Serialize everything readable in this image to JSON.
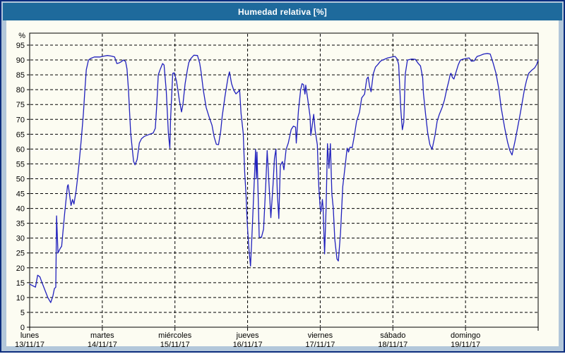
{
  "window": {
    "title": "Humedad relativa [%]"
  },
  "colors": {
    "title_bar": "#1e6a9c",
    "title_text": "#ffffff",
    "window_border": "#0c2d7e",
    "window_margin": "#b2c7da",
    "panel_background": "#fcfcf2",
    "series_line": "#2121bd",
    "grid_line": "#000000",
    "axis_text": "#000000"
  },
  "chart_data": {
    "type": "line",
    "title": "Humedad relativa [%]",
    "ylabel": "%",
    "ylim": [
      0,
      99
    ],
    "y_ticks": [
      0,
      5,
      10,
      15,
      20,
      25,
      30,
      35,
      40,
      45,
      50,
      55,
      60,
      65,
      70,
      75,
      80,
      85,
      90,
      95
    ],
    "grid": "dashed",
    "legend": "none",
    "x_axis_days": [
      {
        "name": "lunes",
        "date": "13/11/17"
      },
      {
        "name": "martes",
        "date": "14/11/17"
      },
      {
        "name": "miércoles",
        "date": "15/11/17"
      },
      {
        "name": "jueves",
        "date": "16/11/17"
      },
      {
        "name": "viernes",
        "date": "17/11/17"
      },
      {
        "name": "sábado",
        "date": "18/11/17"
      },
      {
        "name": "domingo",
        "date": "19/11/17"
      }
    ],
    "series": [
      {
        "name": "Humedad relativa [%]",
        "x_unit": "days_from_start",
        "points": [
          [
            0,
            14.5
          ],
          [
            0.04,
            14
          ],
          [
            0.08,
            13.5
          ],
          [
            0.11,
            17.5
          ],
          [
            0.14,
            17
          ],
          [
            0.17,
            15
          ],
          [
            0.21,
            12.5
          ],
          [
            0.25,
            10
          ],
          [
            0.29,
            8.3
          ],
          [
            0.32,
            10.5
          ],
          [
            0.34,
            13
          ],
          [
            0.36,
            13.5
          ],
          [
            0.37,
            37.5
          ],
          [
            0.39,
            25
          ],
          [
            0.42,
            26.5
          ],
          [
            0.44,
            27.3
          ],
          [
            0.48,
            38
          ],
          [
            0.52,
            47.5
          ],
          [
            0.53,
            48
          ],
          [
            0.57,
            41
          ],
          [
            0.59,
            43
          ],
          [
            0.61,
            41.5
          ],
          [
            0.64,
            46
          ],
          [
            0.66,
            50.4
          ],
          [
            0.68,
            55
          ],
          [
            0.71,
            63
          ],
          [
            0.74,
            72
          ],
          [
            0.76,
            80
          ],
          [
            0.78,
            86.7
          ],
          [
            0.81,
            90
          ],
          [
            0.84,
            90.5
          ],
          [
            0.89,
            91
          ],
          [
            0.97,
            91
          ],
          [
            1.02,
            91.3
          ],
          [
            1.07,
            91.5
          ],
          [
            1.13,
            91.3
          ],
          [
            1.17,
            91
          ],
          [
            1.2,
            88.8
          ],
          [
            1.23,
            89
          ],
          [
            1.26,
            89.4
          ],
          [
            1.29,
            90
          ],
          [
            1.32,
            89.5
          ],
          [
            1.34,
            87
          ],
          [
            1.36,
            80
          ],
          [
            1.39,
            65.4
          ],
          [
            1.43,
            55.9
          ],
          [
            1.45,
            54.7
          ],
          [
            1.48,
            56.5
          ],
          [
            1.51,
            62
          ],
          [
            1.54,
            63.5
          ],
          [
            1.58,
            64.3
          ],
          [
            1.63,
            64.8
          ],
          [
            1.7,
            65.4
          ],
          [
            1.73,
            67
          ],
          [
            1.75,
            75
          ],
          [
            1.77,
            85
          ],
          [
            1.8,
            87
          ],
          [
            1.83,
            88.8
          ],
          [
            1.85,
            88.3
          ],
          [
            1.88,
            79.6
          ],
          [
            1.91,
            65
          ],
          [
            1.93,
            60.3
          ],
          [
            1.94,
            70
          ],
          [
            1.97,
            85.5
          ],
          [
            1.99,
            85.7
          ],
          [
            2.02,
            83
          ],
          [
            2.04,
            80
          ],
          [
            2.06,
            76.5
          ],
          [
            2.09,
            72.5
          ],
          [
            2.11,
            75
          ],
          [
            2.14,
            82
          ],
          [
            2.17,
            86.5
          ],
          [
            2.19,
            89.1
          ],
          [
            2.22,
            90.5
          ],
          [
            2.26,
            91.6
          ],
          [
            2.31,
            91.5
          ],
          [
            2.34,
            89
          ],
          [
            2.36,
            86
          ],
          [
            2.39,
            80
          ],
          [
            2.43,
            74
          ],
          [
            2.47,
            70.8
          ],
          [
            2.51,
            68
          ],
          [
            2.54,
            64
          ],
          [
            2.57,
            61.6
          ],
          [
            2.6,
            61.5
          ],
          [
            2.63,
            66
          ],
          [
            2.65,
            71
          ],
          [
            2.69,
            78
          ],
          [
            2.73,
            84
          ],
          [
            2.75,
            86
          ],
          [
            2.78,
            82
          ],
          [
            2.81,
            79.8
          ],
          [
            2.84,
            78.6
          ],
          [
            2.87,
            79.3
          ],
          [
            2.89,
            79.8
          ],
          [
            2.91,
            72
          ],
          [
            2.94,
            65.3
          ],
          [
            2.96,
            52
          ],
          [
            2.98,
            44
          ],
          [
            2.99,
            38
          ],
          [
            3,
            33
          ],
          [
            3.02,
            26
          ],
          [
            3.04,
            20.6
          ],
          [
            3.06,
            30.6
          ],
          [
            3.09,
            48
          ],
          [
            3.11,
            59.9
          ],
          [
            3.12,
            50
          ],
          [
            3.13,
            59
          ],
          [
            3.15,
            40
          ],
          [
            3.16,
            30.4
          ],
          [
            3.19,
            30.2
          ],
          [
            3.22,
            33
          ],
          [
            3.25,
            48
          ],
          [
            3.27,
            59.5
          ],
          [
            3.3,
            46
          ],
          [
            3.32,
            36.9
          ],
          [
            3.35,
            48
          ],
          [
            3.37,
            56.8
          ],
          [
            3.39,
            60
          ],
          [
            3.41,
            45
          ],
          [
            3.43,
            36.6
          ],
          [
            3.45,
            54.4
          ],
          [
            3.48,
            55.8
          ],
          [
            3.5,
            53
          ],
          [
            3.53,
            59.9
          ],
          [
            3.56,
            62
          ],
          [
            3.6,
            66.6
          ],
          [
            3.63,
            67.7
          ],
          [
            3.66,
            67.4
          ],
          [
            3.67,
            62
          ],
          [
            3.7,
            73
          ],
          [
            3.73,
            80
          ],
          [
            3.75,
            82
          ],
          [
            3.77,
            81.7
          ],
          [
            3.79,
            78.5
          ],
          [
            3.8,
            81.5
          ],
          [
            3.83,
            76.5
          ],
          [
            3.86,
            71
          ],
          [
            3.87,
            64.6
          ],
          [
            3.89,
            68
          ],
          [
            3.91,
            71.7
          ],
          [
            3.93,
            66.3
          ],
          [
            3.96,
            61.5
          ],
          [
            3.98,
            47.3
          ],
          [
            4,
            40.1
          ],
          [
            4.01,
            38.9
          ],
          [
            4.02,
            41
          ],
          [
            4.03,
            43
          ],
          [
            4.04,
            40
          ],
          [
            4.06,
            24.7
          ],
          [
            4.08,
            40
          ],
          [
            4.1,
            61.8
          ],
          [
            4.12,
            53.5
          ],
          [
            4.14,
            61.8
          ],
          [
            4.16,
            44.9
          ],
          [
            4.18,
            40.1
          ],
          [
            4.2,
            29.7
          ],
          [
            4.23,
            23
          ],
          [
            4.25,
            22.3
          ],
          [
            4.28,
            32
          ],
          [
            4.31,
            47.3
          ],
          [
            4.35,
            55.8
          ],
          [
            4.37,
            60.3
          ],
          [
            4.39,
            59
          ],
          [
            4.41,
            60.6
          ],
          [
            4.44,
            60.5
          ],
          [
            4.47,
            64.6
          ],
          [
            4.5,
            69.4
          ],
          [
            4.54,
            72.4
          ],
          [
            4.57,
            77.2
          ],
          [
            4.61,
            78.5
          ],
          [
            4.64,
            83.6
          ],
          [
            4.66,
            84.3
          ],
          [
            4.68,
            81
          ],
          [
            4.7,
            79.3
          ],
          [
            4.73,
            85.3
          ],
          [
            4.76,
            87.6
          ],
          [
            4.79,
            88.4
          ],
          [
            4.83,
            89.6
          ],
          [
            4.86,
            90
          ],
          [
            4.93,
            90.7
          ],
          [
            4.99,
            91
          ],
          [
            5.03,
            91.2
          ],
          [
            5.06,
            90.3
          ],
          [
            5.08,
            88.4
          ],
          [
            5.11,
            73
          ],
          [
            5.13,
            66.5
          ],
          [
            5.15,
            69
          ],
          [
            5.17,
            85.2
          ],
          [
            5.2,
            90
          ],
          [
            5.26,
            90.3
          ],
          [
            5.31,
            90.2
          ],
          [
            5.35,
            88.8
          ],
          [
            5.38,
            88
          ],
          [
            5.41,
            84
          ],
          [
            5.42,
            78.9
          ],
          [
            5.45,
            71.7
          ],
          [
            5.48,
            65.3
          ],
          [
            5.51,
            61.5
          ],
          [
            5.54,
            59.9
          ],
          [
            5.58,
            64.6
          ],
          [
            5.61,
            69.4
          ],
          [
            5.64,
            71.7
          ],
          [
            5.68,
            74.1
          ],
          [
            5.71,
            76.5
          ],
          [
            5.74,
            80
          ],
          [
            5.77,
            82.9
          ],
          [
            5.79,
            85.2
          ],
          [
            5.8,
            85.5
          ],
          [
            5.82,
            84.1
          ],
          [
            5.84,
            83.6
          ],
          [
            5.87,
            86
          ],
          [
            5.9,
            88.4
          ],
          [
            5.93,
            90
          ],
          [
            5.97,
            90.3
          ],
          [
            6.01,
            90.5
          ],
          [
            6.05,
            90.7
          ],
          [
            6.08,
            89.6
          ],
          [
            6.12,
            89.7
          ],
          [
            6.14,
            90.5
          ],
          [
            6.16,
            91.2
          ],
          [
            6.2,
            91.5
          ],
          [
            6.25,
            92
          ],
          [
            6.3,
            92.2
          ],
          [
            6.34,
            92
          ],
          [
            6.38,
            89
          ],
          [
            6.42,
            85.5
          ],
          [
            6.46,
            80
          ],
          [
            6.49,
            74.1
          ],
          [
            6.54,
            67
          ],
          [
            6.58,
            62.2
          ],
          [
            6.61,
            59.5
          ],
          [
            6.64,
            58
          ],
          [
            6.68,
            62.5
          ],
          [
            6.71,
            66.3
          ],
          [
            6.75,
            71.5
          ],
          [
            6.78,
            75.7
          ],
          [
            6.81,
            80
          ],
          [
            6.84,
            83.1
          ],
          [
            6.87,
            85.5
          ],
          [
            6.91,
            86.5
          ],
          [
            6.95,
            87.3
          ],
          [
            6.98,
            88.5
          ],
          [
            7,
            90
          ]
        ]
      }
    ]
  }
}
